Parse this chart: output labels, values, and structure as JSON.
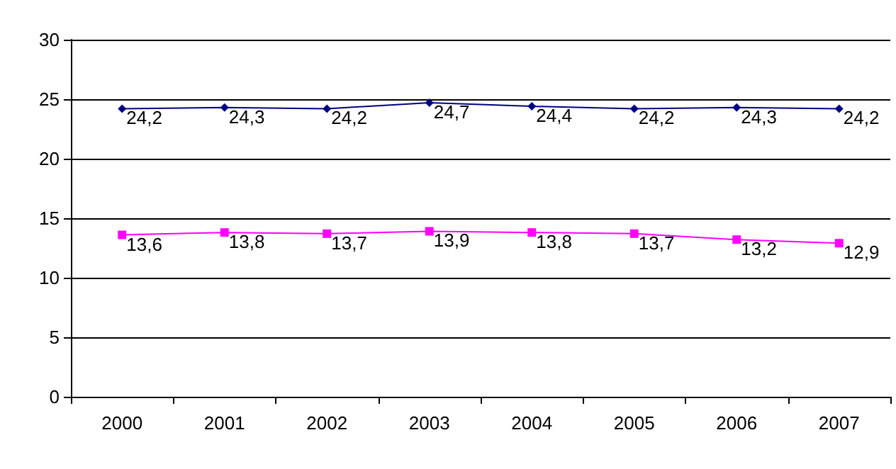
{
  "chart_data": {
    "type": "line",
    "categories": [
      "2000",
      "2001",
      "2002",
      "2003",
      "2004",
      "2005",
      "2006",
      "2007"
    ],
    "series": [
      {
        "color": "#000080",
        "marker": "diamond",
        "values": [
          24.2,
          24.3,
          24.2,
          24.7,
          24.4,
          24.2,
          24.3,
          24.2
        ],
        "value_labels": [
          "24,2",
          "24,3",
          "24,2",
          "24,7",
          "24,4",
          "24,2",
          "24,3",
          "24,2"
        ]
      },
      {
        "color": "#ff00ff",
        "marker": "square",
        "values": [
          13.6,
          13.8,
          13.7,
          13.9,
          13.8,
          13.7,
          13.2,
          12.9
        ],
        "value_labels": [
          "13,6",
          "13,8",
          "13,7",
          "13,9",
          "13,8",
          "13,7",
          "13,2",
          "12,9"
        ]
      }
    ],
    "ylim": [
      0,
      30
    ],
    "yticks": [
      0,
      5,
      10,
      15,
      20,
      25,
      30
    ],
    "grid": "y",
    "line_style": "solid"
  }
}
